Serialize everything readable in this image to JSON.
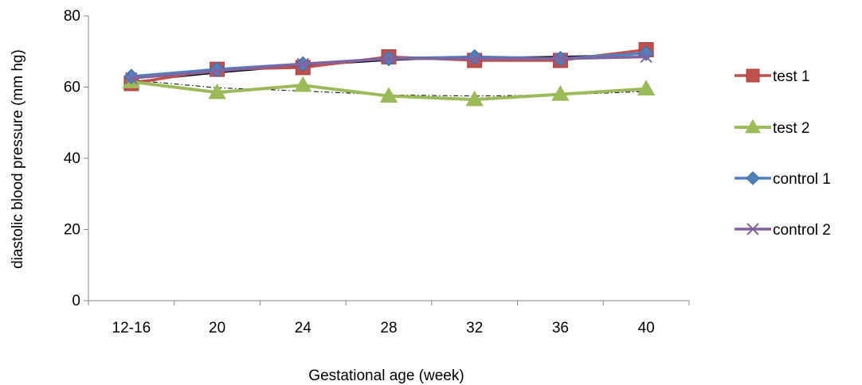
{
  "chart_data": {
    "type": "line",
    "title": "",
    "xlabel": "Gestational age (week)",
    "ylabel": "diastolic blood pressure (mm hg)",
    "categories": [
      "12-16",
      "20",
      "24",
      "28",
      "32",
      "36",
      "40"
    ],
    "ylim": [
      0,
      80
    ],
    "yticks": [
      0,
      20,
      40,
      60,
      80
    ],
    "grid": false,
    "legend_position": "right",
    "series": [
      {
        "name": "test 1",
        "values": [
          61,
          65,
          65.5,
          68.5,
          67.5,
          67.5,
          70.5
        ],
        "color": "#c0504d",
        "marker": "square"
      },
      {
        "name": "test 2",
        "values": [
          61.5,
          58.5,
          60.5,
          57.5,
          56.5,
          58,
          59.5
        ],
        "color": "#9bbb59",
        "marker": "triangle"
      },
      {
        "name": "control 1",
        "values": [
          63,
          65,
          66.5,
          68,
          68.5,
          68,
          69.5
        ],
        "color": "#4f81bd",
        "marker": "diamond"
      },
      {
        "name": "control 2",
        "values": [
          62.5,
          64.5,
          66.5,
          68,
          68,
          68,
          68.5
        ],
        "color": "#8064a2",
        "marker": "x"
      }
    ],
    "trend_lines": [
      {
        "style": "solid",
        "color": "#000000",
        "values": [
          61.5,
          64,
          66,
          67.5,
          68.3,
          68.6,
          69.2
        ]
      },
      {
        "style": "dashdot",
        "color": "#000000",
        "values": [
          62,
          59.8,
          58.9,
          57.8,
          57.5,
          57.8,
          58.8
        ]
      }
    ]
  }
}
